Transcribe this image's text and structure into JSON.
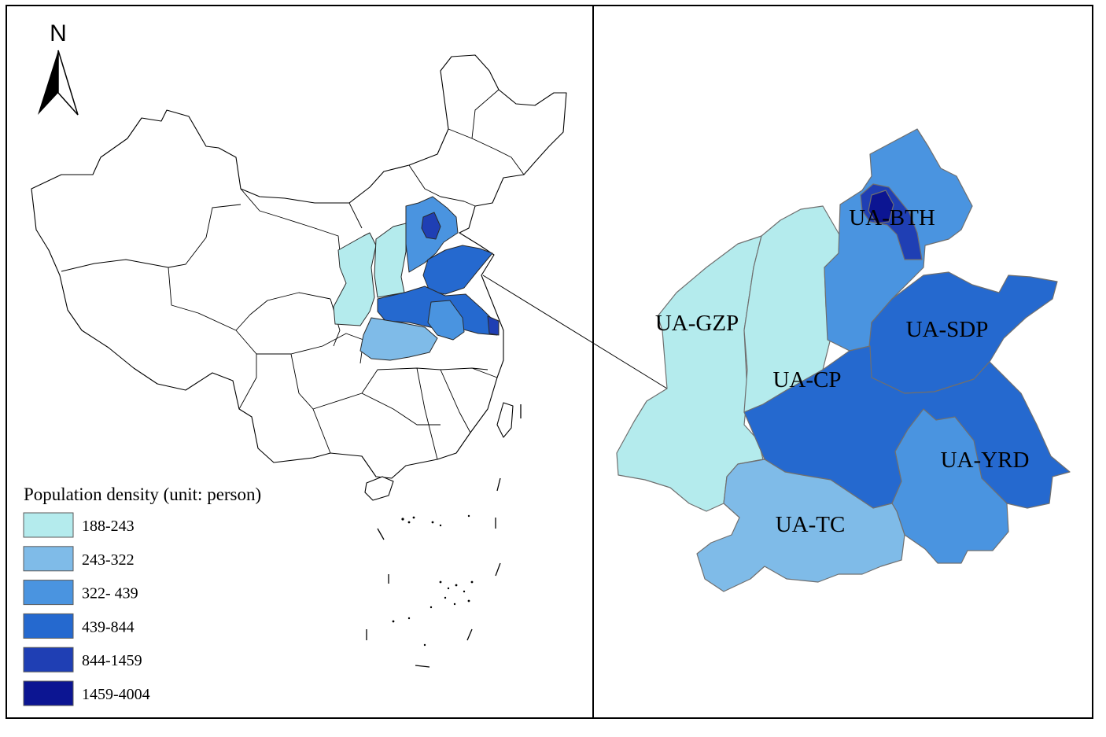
{
  "north_arrow": {
    "label": "N"
  },
  "legend": {
    "title": "Population density (unit: person)",
    "classes": [
      {
        "label": "188-243",
        "color": "#b4ebed"
      },
      {
        "label": "243-322",
        "color": "#7fbbe8"
      },
      {
        "label": "322- 439",
        "color": "#4a94e0"
      },
      {
        "label": "439-844",
        "color": "#2569cf"
      },
      {
        "label": "844-1459",
        "color": "#1f3fb4"
      },
      {
        "label": "1459-4004",
        "color": "#0c1592"
      }
    ]
  },
  "regions": [
    {
      "label": "UA-BTH",
      "class": "322- 439"
    },
    {
      "label": "UA-GZP",
      "class": "188-243"
    },
    {
      "label": "UA-SDP",
      "class": "439-844"
    },
    {
      "label": "UA-CP",
      "class": "188-243"
    },
    {
      "label": "UA-YRD",
      "class": "322- 439"
    },
    {
      "label": "UA-TC",
      "class": "243-322"
    }
  ]
}
